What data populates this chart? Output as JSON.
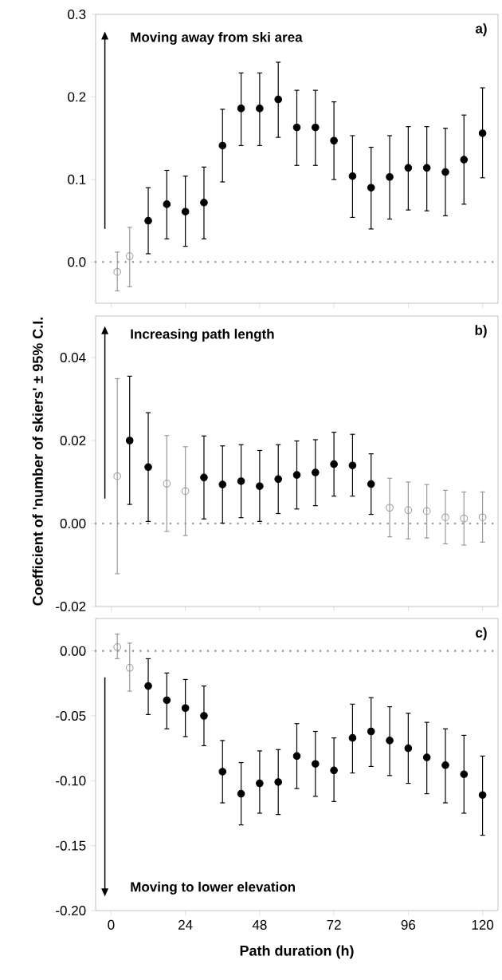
{
  "chart_data": [
    {
      "type": "scatter",
      "title": "a)",
      "annotations": [
        "Moving away from ski area"
      ],
      "x": [
        2,
        6,
        12,
        18,
        24,
        30,
        36,
        42,
        48,
        54,
        60,
        66,
        72,
        78,
        84,
        90,
        96,
        102,
        108,
        114,
        120
      ],
      "series": [
        {
          "color": "#000000",
          "values": [
            null,
            null,
            0.05,
            0.07,
            0.061,
            0.072,
            0.141,
            0.186,
            0.186,
            0.197,
            0.163,
            0.163,
            0.147,
            0.104,
            0.09,
            0.103,
            0.114,
            0.114,
            0.109,
            0.124,
            0.156
          ],
          "errors": [
            null,
            null,
            [
              0.01,
              0.09
            ],
            [
              0.028,
              0.111
            ],
            [
              0.019,
              0.104
            ],
            [
              0.028,
              0.115
            ],
            [
              0.097,
              0.185
            ],
            [
              0.141,
              0.229
            ],
            [
              0.141,
              0.229
            ],
            [
              0.151,
              0.242
            ],
            [
              0.117,
              0.208
            ],
            [
              0.117,
              0.208
            ],
            [
              0.1,
              0.194
            ],
            [
              0.054,
              0.153
            ],
            [
              0.04,
              0.139
            ],
            [
              0.052,
              0.153
            ],
            [
              0.063,
              0.164
            ],
            [
              0.062,
              0.164
            ],
            [
              0.056,
              0.162
            ],
            [
              0.07,
              0.178
            ],
            [
              0.102,
              0.211
            ]
          ]
        },
        {
          "color": "#999999",
          "values": [
            -0.012,
            0.007,
            null,
            null,
            null,
            null,
            null,
            null,
            null,
            null,
            null,
            null,
            null,
            null,
            null,
            null,
            null,
            null,
            null,
            null,
            null
          ],
          "errors": [
            [
              -0.035,
              0.012
            ],
            [
              -0.03,
              0.042
            ],
            null,
            null,
            null,
            null,
            null,
            null,
            null,
            null,
            null,
            null,
            null,
            null,
            null,
            null,
            null,
            null,
            null,
            null,
            null
          ]
        }
      ],
      "xlim": [
        -5,
        125
      ],
      "xticks": [
        {
          "value": 0,
          "label": null
        },
        {
          "value": 24,
          "label": null
        },
        {
          "value": 48,
          "label": null
        },
        {
          "value": 72,
          "label": null
        },
        {
          "value": 96,
          "label": null
        },
        {
          "value": 120,
          "label": null
        }
      ],
      "ylim": [
        -0.05,
        0.3
      ],
      "yticks": [
        {
          "value": 0,
          "label": "0.0"
        },
        {
          "value": 0.1,
          "label": "0.1"
        },
        {
          "value": 0.2,
          "label": "0.2"
        },
        {
          "value": 0.3,
          "label": "0.3"
        }
      ],
      "tick_labels": "y",
      "marker": "circle",
      "ref_lines": [
        {
          "axis": "y",
          "value": 0,
          "color": "#999999",
          "line_style": "dotted"
        }
      ]
    },
    {
      "type": "scatter",
      "title": "b)",
      "ylabel": "Coefficient of 'number of skiers' ± 95% C.I.",
      "annotations": [
        "Increasing path length"
      ],
      "x": [
        2,
        6,
        12,
        18,
        24,
        30,
        36,
        42,
        48,
        54,
        60,
        66,
        72,
        78,
        84,
        90,
        96,
        102,
        108,
        114,
        120
      ],
      "series": [
        {
          "color": "#000000",
          "values": [
            null,
            0.02,
            0.0136,
            null,
            null,
            0.0111,
            0.0094,
            0.0102,
            0.009,
            0.0107,
            0.0117,
            0.0123,
            0.0143,
            0.014,
            0.0095,
            null,
            null,
            null,
            null,
            null,
            null
          ],
          "errors": [
            null,
            [
              0.0046,
              0.0355
            ],
            [
              0.0005,
              0.0267
            ],
            null,
            null,
            [
              0.0011,
              0.0211
            ],
            [
              0.0001,
              0.0187
            ],
            [
              0.0014,
              0.019
            ],
            [
              0.0005,
              0.0176
            ],
            [
              0.0024,
              0.019
            ],
            [
              0.0035,
              0.0199
            ],
            [
              0.0043,
              0.0202
            ],
            [
              0.0066,
              0.022
            ],
            [
              0.0066,
              0.0215
            ],
            [
              0.0022,
              0.0168
            ],
            null,
            null,
            null,
            null,
            null,
            null
          ]
        },
        {
          "color": "#999999",
          "values": [
            0.0114,
            null,
            null,
            0.0096,
            0.0078,
            null,
            null,
            null,
            null,
            null,
            null,
            null,
            null,
            null,
            null,
            0.0038,
            0.0032,
            0.003,
            0.0015,
            0.0012,
            0.0015
          ],
          "errors": [
            [
              -0.0121,
              0.0349
            ],
            null,
            null,
            [
              -0.0019,
              0.0212
            ],
            [
              -0.0029,
              0.0185
            ],
            null,
            null,
            null,
            null,
            null,
            null,
            null,
            null,
            null,
            null,
            [
              -0.0032,
              0.0109
            ],
            [
              -0.0037,
              0.01
            ],
            [
              -0.0035,
              0.0094
            ],
            [
              -0.0049,
              0.008
            ],
            [
              -0.0052,
              0.0076
            ],
            [
              -0.0045,
              0.0076
            ]
          ]
        }
      ],
      "xlim": [
        -5,
        125
      ],
      "xticks": [
        {
          "value": 0,
          "label": null
        },
        {
          "value": 24,
          "label": null
        },
        {
          "value": 48,
          "label": null
        },
        {
          "value": 72,
          "label": null
        },
        {
          "value": 96,
          "label": null
        },
        {
          "value": 120,
          "label": null
        }
      ],
      "ylim": [
        -0.02,
        0.05
      ],
      "yticks": [
        {
          "value": -0.02,
          "label": "-0.02"
        },
        {
          "value": 0,
          "label": "0.00"
        },
        {
          "value": 0.02,
          "label": "0.02"
        },
        {
          "value": 0.04,
          "label": "0.04"
        }
      ],
      "tick_labels": "y",
      "marker": "circle",
      "ref_lines": [
        {
          "axis": "y",
          "value": 0,
          "color": "#999999",
          "line_style": "dotted"
        }
      ]
    },
    {
      "type": "scatter",
      "title": "c)",
      "xlabel": "Path duration (h)",
      "annotations": [
        "Moving to lower elevation"
      ],
      "x": [
        2,
        6,
        12,
        18,
        24,
        30,
        36,
        42,
        48,
        54,
        60,
        66,
        72,
        78,
        84,
        90,
        96,
        102,
        108,
        114,
        120
      ],
      "series": [
        {
          "color": "#000000",
          "values": [
            null,
            null,
            -0.027,
            -0.038,
            -0.044,
            -0.05,
            -0.093,
            -0.11,
            -0.102,
            -0.101,
            -0.081,
            -0.087,
            -0.092,
            -0.067,
            -0.062,
            -0.069,
            -0.075,
            -0.082,
            -0.088,
            -0.095,
            -0.111
          ],
          "errors": [
            null,
            null,
            [
              -0.049,
              -0.006
            ],
            [
              -0.06,
              -0.017
            ],
            [
              -0.066,
              -0.022
            ],
            [
              -0.073,
              -0.027
            ],
            [
              -0.117,
              -0.069
            ],
            [
              -0.134,
              -0.086
            ],
            [
              -0.125,
              -0.077
            ],
            [
              -0.126,
              -0.076
            ],
            [
              -0.106,
              -0.056
            ],
            [
              -0.112,
              -0.062
            ],
            [
              -0.116,
              -0.067
            ],
            [
              -0.094,
              -0.041
            ],
            [
              -0.089,
              -0.036
            ],
            [
              -0.096,
              -0.043
            ],
            [
              -0.102,
              -0.048
            ],
            [
              -0.11,
              -0.055
            ],
            [
              -0.117,
              -0.06
            ],
            [
              -0.125,
              -0.065
            ],
            [
              -0.142,
              -0.081
            ]
          ]
        },
        {
          "color": "#999999",
          "values": [
            0.003,
            -0.013,
            null,
            null,
            null,
            null,
            null,
            null,
            null,
            null,
            null,
            null,
            null,
            null,
            null,
            null,
            null,
            null,
            null,
            null,
            null
          ],
          "errors": [
            [
              -0.006,
              0.013
            ],
            [
              -0.031,
              0.006
            ],
            null,
            null,
            null,
            null,
            null,
            null,
            null,
            null,
            null,
            null,
            null,
            null,
            null,
            null,
            null,
            null,
            null,
            null,
            null
          ]
        }
      ],
      "xlim": [
        -5,
        125
      ],
      "xticks": [
        0,
        24,
        48,
        72,
        96,
        120
      ],
      "ylim": [
        -0.2,
        0.025
      ],
      "yticks": [
        {
          "value": -0.2,
          "label": "-0.20"
        },
        {
          "value": -0.15,
          "label": "-0.15"
        },
        {
          "value": -0.1,
          "label": "-0.10"
        },
        {
          "value": -0.05,
          "label": "-0.05"
        },
        {
          "value": 0,
          "label": "0.00"
        }
      ],
      "marker": "circle",
      "ref_lines": [
        {
          "axis": "y",
          "value": 0,
          "color": "#999999",
          "line_style": "dotted"
        }
      ]
    }
  ]
}
